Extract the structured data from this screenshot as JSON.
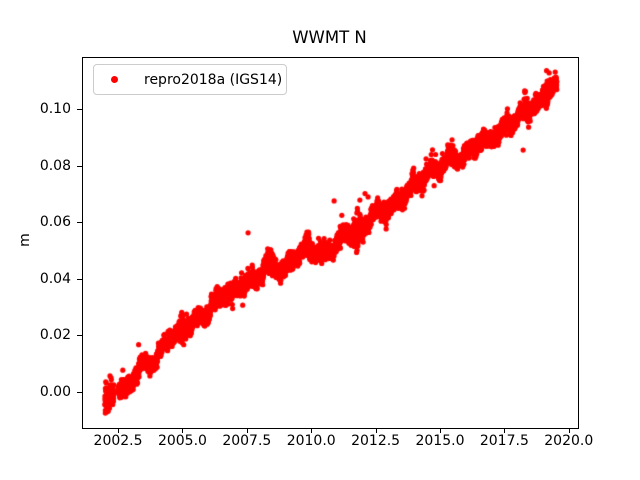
{
  "chart_data": {
    "type": "scatter",
    "title": "WWMT N",
    "xlabel": "",
    "ylabel": "m",
    "series_name": "repro2018a (IGS14)",
    "legend_position": "upper left",
    "grid": false,
    "marker_color": "#ff0000",
    "marker_radius_px": 2.6,
    "axis_color": "#000000",
    "legend_border_color": "#cccccc",
    "xlim": [
      2001.1,
      2020.32
    ],
    "ylim": [
      -0.0125,
      0.1185
    ],
    "x_ticks": [
      2002.5,
      2005.0,
      2007.5,
      2010.0,
      2012.5,
      2015.0,
      2017.5,
      2020.0
    ],
    "x_tick_labels": [
      "2002.5",
      "2005.0",
      "2007.5",
      "2010.0",
      "2012.5",
      "2015.0",
      "2017.5",
      "2020.0"
    ],
    "y_ticks": [
      0.0,
      0.02,
      0.04,
      0.06,
      0.08,
      0.1
    ],
    "y_tick_labels": [
      "0.00",
      "0.02",
      "0.04",
      "0.06",
      "0.08",
      "0.10"
    ],
    "t_start": 2001.95,
    "t_end": 2019.5,
    "samples_per_year": 365,
    "seed": 42,
    "clamp": [
      -0.0072,
      0.1148
    ],
    "gaps": [
      [
        2002.3,
        2002.47
      ]
    ],
    "trend_control_points": [
      [
        2001.95,
        -0.003
      ],
      [
        2002.05,
        -0.0022
      ],
      [
        2002.18,
        -0.0008
      ],
      [
        2002.28,
        0.0
      ],
      [
        2002.5,
        0.001
      ],
      [
        2002.8,
        0.0018
      ],
      [
        2003.0,
        0.005
      ],
      [
        2003.3,
        0.0078
      ],
      [
        2003.6,
        0.0102
      ],
      [
        2004.0,
        0.0128
      ],
      [
        2004.5,
        0.019
      ],
      [
        2004.95,
        0.0228
      ],
      [
        2005.3,
        0.0235
      ],
      [
        2005.8,
        0.028
      ],
      [
        2006.1,
        0.0302
      ],
      [
        2006.65,
        0.0358
      ],
      [
        2007.0,
        0.0365
      ],
      [
        2007.6,
        0.0392
      ],
      [
        2008.0,
        0.0425
      ],
      [
        2008.35,
        0.0455
      ],
      [
        2008.6,
        0.0438
      ],
      [
        2008.9,
        0.0445
      ],
      [
        2009.2,
        0.0465
      ],
      [
        2009.55,
        0.049
      ],
      [
        2009.85,
        0.053
      ],
      [
        2010.1,
        0.05
      ],
      [
        2010.35,
        0.0478
      ],
      [
        2010.7,
        0.051
      ],
      [
        2011.0,
        0.054
      ],
      [
        2011.4,
        0.0558
      ],
      [
        2011.75,
        0.0565
      ],
      [
        2012.1,
        0.06
      ],
      [
        2012.5,
        0.0635
      ],
      [
        2013.0,
        0.0662
      ],
      [
        2013.4,
        0.0668
      ],
      [
        2013.85,
        0.0745
      ],
      [
        2014.2,
        0.0742
      ],
      [
        2014.6,
        0.0785
      ],
      [
        2015.0,
        0.0805
      ],
      [
        2015.4,
        0.0825
      ],
      [
        2015.8,
        0.084
      ],
      [
        2016.2,
        0.0865
      ],
      [
        2016.6,
        0.089
      ],
      [
        2017.0,
        0.0912
      ],
      [
        2017.35,
        0.092
      ],
      [
        2017.7,
        0.096
      ],
      [
        2018.0,
        0.098
      ],
      [
        2018.3,
        0.099
      ],
      [
        2018.6,
        0.101
      ],
      [
        2018.9,
        0.104
      ],
      [
        2019.1,
        0.107
      ],
      [
        2019.25,
        0.108
      ],
      [
        2019.5,
        0.1075
      ]
    ],
    "noise": {
      "sigma": 0.0013,
      "seasonal_amp": 0.0009,
      "seasonal_phase": 0.12,
      "wave1_amp": 0.0012,
      "wave1_period": 0.7,
      "wave2_amp": 0.0008,
      "wave2_period": 0.23,
      "burst_prob": 0.012,
      "burst_amp": 0.008
    },
    "spread_regions": [
      {
        "t": 2002.08,
        "w": 0.16,
        "mult": 2.1
      },
      {
        "t": 2004.95,
        "w": 0.1,
        "mult": 2.0
      },
      {
        "t": 2008.35,
        "w": 0.1,
        "mult": 1.6
      },
      {
        "t": 2009.85,
        "w": 0.08,
        "mult": 1.7
      },
      {
        "t": 2011.75,
        "w": 0.14,
        "mult": 2.3
      },
      {
        "t": 2013.9,
        "w": 0.08,
        "mult": 1.5
      },
      {
        "t": 2018.3,
        "w": 0.1,
        "mult": 2.0
      },
      {
        "t": 2019.15,
        "w": 0.12,
        "mult": 1.9
      }
    ],
    "outliers": [
      [
        2002.02,
        -0.0068
      ],
      [
        2003.26,
        0.017
      ],
      [
        2005.12,
        0.0278
      ],
      [
        2006.91,
        0.0298
      ],
      [
        2007.3,
        0.031
      ],
      [
        2007.51,
        0.0566
      ],
      [
        2010.85,
        0.0679
      ],
      [
        2011.15,
        0.0628
      ],
      [
        2011.85,
        0.0682
      ],
      [
        2012.05,
        0.0705
      ],
      [
        2012.17,
        0.0693
      ],
      [
        2012.87,
        0.058
      ],
      [
        2014.42,
        0.0828
      ],
      [
        2014.67,
        0.086
      ],
      [
        2017.58,
        0.1005
      ],
      [
        2018.19,
        0.0859
      ],
      [
        2019.1,
        0.114
      ],
      [
        2019.2,
        0.1132
      ]
    ]
  }
}
